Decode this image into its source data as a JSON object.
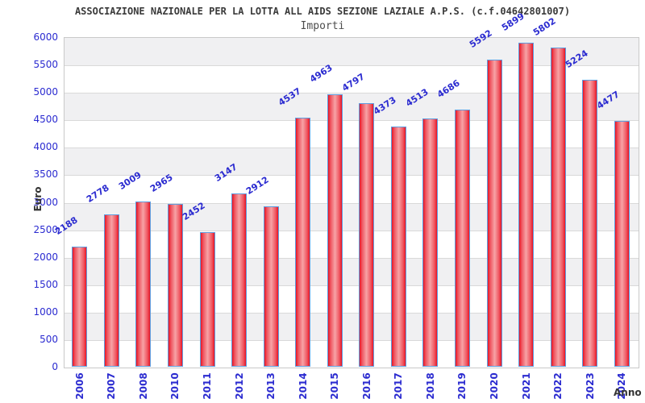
{
  "title": "ASSOCIAZIONE NAZIONALE PER LA LOTTA ALL AIDS SEZIONE LAZIALE A.P.S. (c.f.04642801007)",
  "subtitle": "Importi",
  "chart_data": {
    "type": "bar",
    "title": "ASSOCIAZIONE NAZIONALE PER LA LOTTA ALL AIDS SEZIONE LAZIALE A.P.S. (c.f.04642801007)",
    "subtitle": "Importi",
    "xlabel": "Anno",
    "ylabel": "Euro",
    "categories": [
      "2006",
      "2007",
      "2008",
      "2010",
      "2011",
      "2012",
      "2013",
      "2014",
      "2015",
      "2016",
      "2017",
      "2018",
      "2019",
      "2020",
      "2021",
      "2022",
      "2023",
      "2024"
    ],
    "values": [
      2188,
      2778,
      3009,
      2965,
      2452,
      3147,
      2912,
      4537,
      4963,
      4797,
      4373,
      4513,
      4686,
      5592,
      5899,
      5802,
      5224,
      4477
    ],
    "ylim": [
      0,
      6000
    ],
    "ytick_step": 500,
    "grid": true,
    "legend": "none",
    "colors": {
      "tick_label": "#2b2bd0",
      "value_label": "#2b2bd0",
      "bar_edge": "#e81423",
      "bar_center": "#f7a3a6",
      "bar_border": "#5f9ddf",
      "band_gray": "#f0f0f2",
      "band_white": "#ffffff",
      "gridline": "#d9d9d9",
      "title_color": "#3a3a3a"
    }
  }
}
